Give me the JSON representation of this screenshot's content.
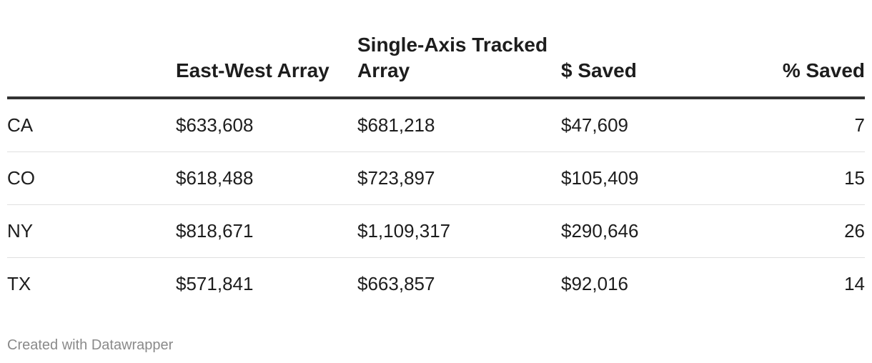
{
  "chart_data": {
    "type": "table",
    "columns": [
      "",
      "East-West Array",
      "Single-Axis Tracked Array",
      "$ Saved",
      "% Saved"
    ],
    "rows": [
      [
        "CA",
        "$633,608",
        "$681,218",
        "$47,609",
        "7"
      ],
      [
        "CO",
        "$618,488",
        "$723,897",
        "$105,409",
        "15"
      ],
      [
        "NY",
        "$818,671",
        "$1,109,317",
        "$290,646",
        "26"
      ],
      [
        "TX",
        "$571,841",
        "$663,857",
        "$92,016",
        "14"
      ]
    ]
  },
  "footer": "Created with Datawrapper"
}
